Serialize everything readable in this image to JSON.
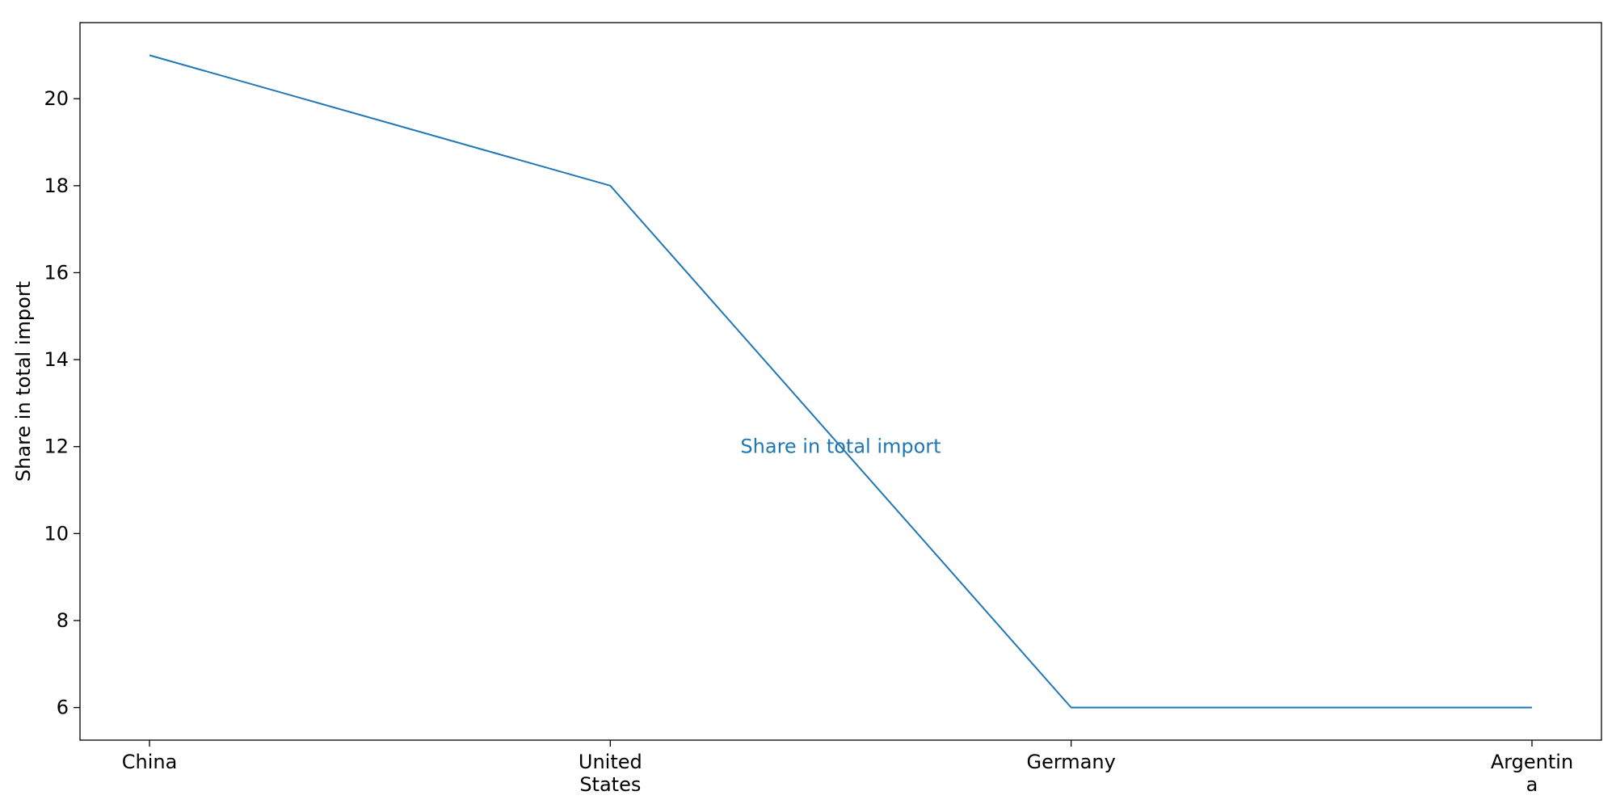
{
  "chart_data": {
    "type": "line",
    "title": "",
    "xlabel": "",
    "ylabel": "Share in total import",
    "categories": [
      "China",
      "United States",
      "Germany",
      "Argentina"
    ],
    "category_tick_lines": [
      [
        "China"
      ],
      [
        "United",
        "States"
      ],
      [
        "Germany"
      ],
      [
        "Argentin",
        "a"
      ]
    ],
    "series": [
      {
        "values": [
          21,
          18,
          6,
          6
        ],
        "color": "#1f77b4"
      }
    ],
    "annotations": [
      {
        "text": "Share in total import",
        "x": 1.5,
        "y": 12,
        "color": "#1f77b4"
      }
    ],
    "ylim": [
      5.25,
      21.75
    ],
    "yticks": [
      6,
      8,
      10,
      12,
      14,
      16,
      18,
      20
    ],
    "grid": false,
    "legend": "none"
  }
}
